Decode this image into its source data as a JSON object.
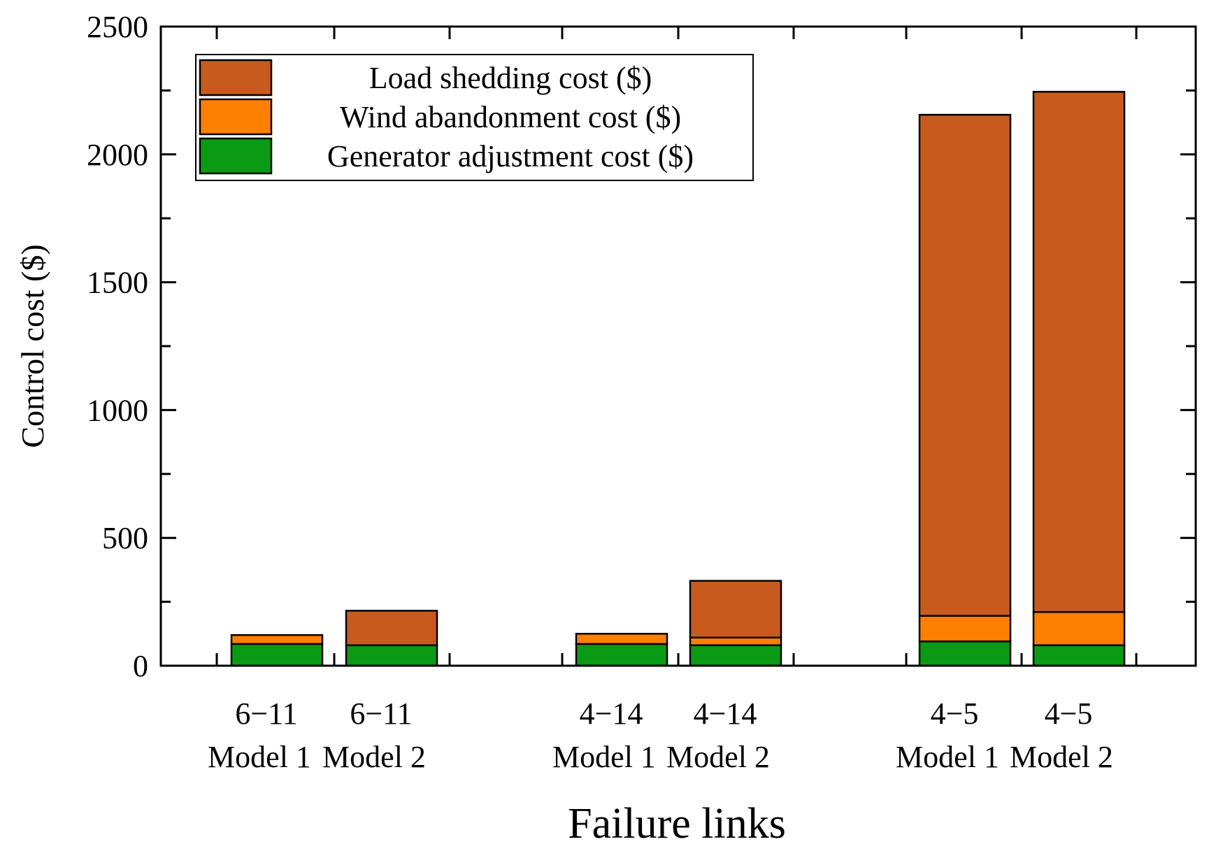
{
  "chart_data": {
    "type": "bar",
    "stacked": true,
    "title": "",
    "xlabel": "Failure links",
    "ylabel": "Control cost ($)",
    "ylim": [
      0,
      2500
    ],
    "yticks": [
      0,
      500,
      1000,
      1500,
      2000,
      2500
    ],
    "categories": [
      {
        "line1": "6−11",
        "line2": "Model 1"
      },
      {
        "line1": "6−11",
        "line2": "Model 2"
      },
      {
        "line1": "4−14",
        "line2": "Model 1"
      },
      {
        "line1": "4−14",
        "line2": "Model 2"
      },
      {
        "line1": "4−5",
        "line2": "Model 1"
      },
      {
        "line1": "4−5",
        "line2": "Model 2"
      }
    ],
    "series": [
      {
        "name": "Generator adjustment cost ($)",
        "color": "#0a9a14",
        "values": [
          85,
          80,
          85,
          80,
          95,
          80
        ]
      },
      {
        "name": "Wind abandonment cost ($)",
        "color": "#ff7f00",
        "values": [
          35,
          0,
          40,
          30,
          100,
          130
        ]
      },
      {
        "name": "Load shedding cost ($)",
        "color": "#c85a1e",
        "values": [
          0,
          135,
          0,
          222,
          1960,
          2035
        ]
      }
    ],
    "legend_order": [
      2,
      1,
      0
    ],
    "legend_position": "top-left"
  }
}
